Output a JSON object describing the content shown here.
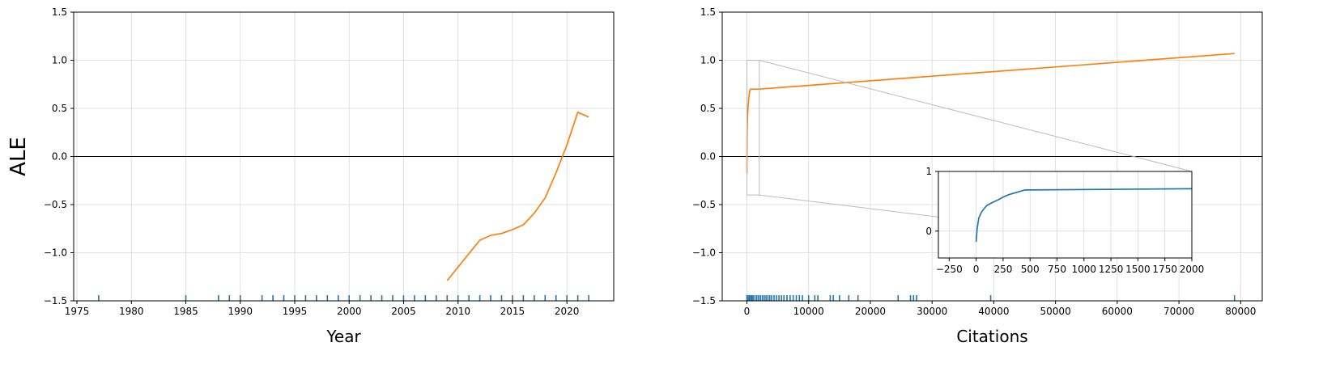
{
  "chart_data": [
    {
      "type": "line",
      "title": "",
      "xlabel": "Year",
      "ylabel": "ALE",
      "xlim": [
        1974.7,
        2024.3
      ],
      "ylim": [
        -1.5,
        1.5
      ],
      "xticks": [
        1975,
        1980,
        1985,
        1990,
        1995,
        2000,
        2005,
        2010,
        2015,
        2020
      ],
      "xtick_labels": [
        "1975",
        "1980",
        "1985",
        "1990",
        "1995",
        "2000",
        "2005",
        "2010",
        "2015",
        "2020"
      ],
      "yticks": [
        -1.5,
        -1.0,
        -0.5,
        0.0,
        0.5,
        1.0,
        1.5
      ],
      "ytick_labels": [
        "−1.5",
        "−1.0",
        "−0.5",
        "0.0",
        "0.5",
        "1.0",
        "1.5"
      ],
      "grid": true,
      "zero_line": true,
      "colors": {
        "line": "#ff7f0e",
        "rug": "#1f77b4"
      },
      "series": [
        {
          "x": [
            2009,
            2010,
            2011,
            2012,
            2013,
            2014,
            2015,
            2016,
            2017,
            2018,
            2019,
            2020,
            2021,
            2022
          ],
          "y": [
            -1.29,
            -1.15,
            -1.01,
            -0.87,
            -0.82,
            -0.8,
            -0.76,
            -0.71,
            -0.59,
            -0.43,
            -0.17,
            0.12,
            0.46,
            0.41
          ]
        }
      ],
      "rug": [
        1977,
        1985,
        1988,
        1989,
        1990,
        1992,
        1993,
        1994,
        1995,
        1996,
        1997,
        1998,
        1999,
        2000,
        2001,
        2002,
        2003,
        2004,
        2005,
        2006,
        2007,
        2008,
        2009,
        2010,
        2011,
        2012,
        2013,
        2014,
        2015,
        2016,
        2017,
        2018,
        2019,
        2020,
        2021,
        2022
      ]
    },
    {
      "type": "line",
      "title": "",
      "xlabel": "Citations",
      "ylabel": "",
      "xlim": [
        -4000,
        83500
      ],
      "ylim": [
        -1.5,
        1.5
      ],
      "xticks": [
        0,
        10000,
        20000,
        30000,
        40000,
        50000,
        60000,
        70000,
        80000
      ],
      "xtick_labels": [
        "0",
        "10000",
        "20000",
        "30000",
        "40000",
        "50000",
        "60000",
        "70000",
        "80000"
      ],
      "yticks": [
        -1.5,
        -1.0,
        -0.5,
        0.0,
        0.5,
        1.0,
        1.5
      ],
      "ytick_labels": [
        "−1.5",
        "−1.0",
        "−0.5",
        "0.0",
        "0.5",
        "1.0",
        "1.5"
      ],
      "grid": true,
      "zero_line": true,
      "colors": {
        "line": "#ff7f0e",
        "rug": "#1f77b4",
        "zoom_box": "#bbbbbb"
      },
      "series": [
        {
          "x": [
            0,
            10,
            25,
            50,
            100,
            200,
            300,
            450,
            600,
            1000,
            2000,
            79000
          ],
          "y": [
            -0.18,
            0.05,
            0.22,
            0.32,
            0.43,
            0.52,
            0.61,
            0.68,
            0.7,
            0.7,
            0.7,
            1.07
          ]
        }
      ],
      "rug": [
        0,
        200,
        400,
        600,
        800,
        1000,
        1300,
        1600,
        1900,
        2200,
        2500,
        2800,
        3100,
        3400,
        3700,
        4000,
        4400,
        4800,
        5200,
        5600,
        6000,
        6500,
        7000,
        7500,
        8000,
        8500,
        9000,
        10000,
        11000,
        11500,
        13500,
        14000,
        15000,
        16500,
        18000,
        24500,
        26500,
        27000,
        27500,
        39500,
        79000
      ],
      "zoom_region": {
        "x": [
          0,
          2000
        ],
        "y": [
          -0.4,
          1.0
        ]
      },
      "inset": {
        "xlim": [
          -350,
          2000
        ],
        "ylim": [
          -0.45,
          1.0
        ],
        "xticks": [
          -250,
          0,
          250,
          500,
          750,
          1000,
          1250,
          1500,
          1750,
          2000
        ],
        "xtick_labels": [
          "−250",
          "0",
          "250",
          "500",
          "750",
          "1000",
          "1250",
          "1500",
          "1750",
          "2000"
        ],
        "yticks": [
          0,
          1
        ],
        "ytick_labels": [
          "0",
          "1"
        ],
        "grid": true,
        "colors": {
          "line": "#1f77b4"
        },
        "series": [
          {
            "x": [
              0,
              10,
              25,
              50,
              75,
              100,
              150,
              200,
              250,
              300,
              450,
              2000
            ],
            "y": [
              -0.18,
              0.05,
              0.22,
              0.32,
              0.38,
              0.43,
              0.48,
              0.52,
              0.57,
              0.61,
              0.69,
              0.71
            ]
          }
        ]
      }
    }
  ]
}
